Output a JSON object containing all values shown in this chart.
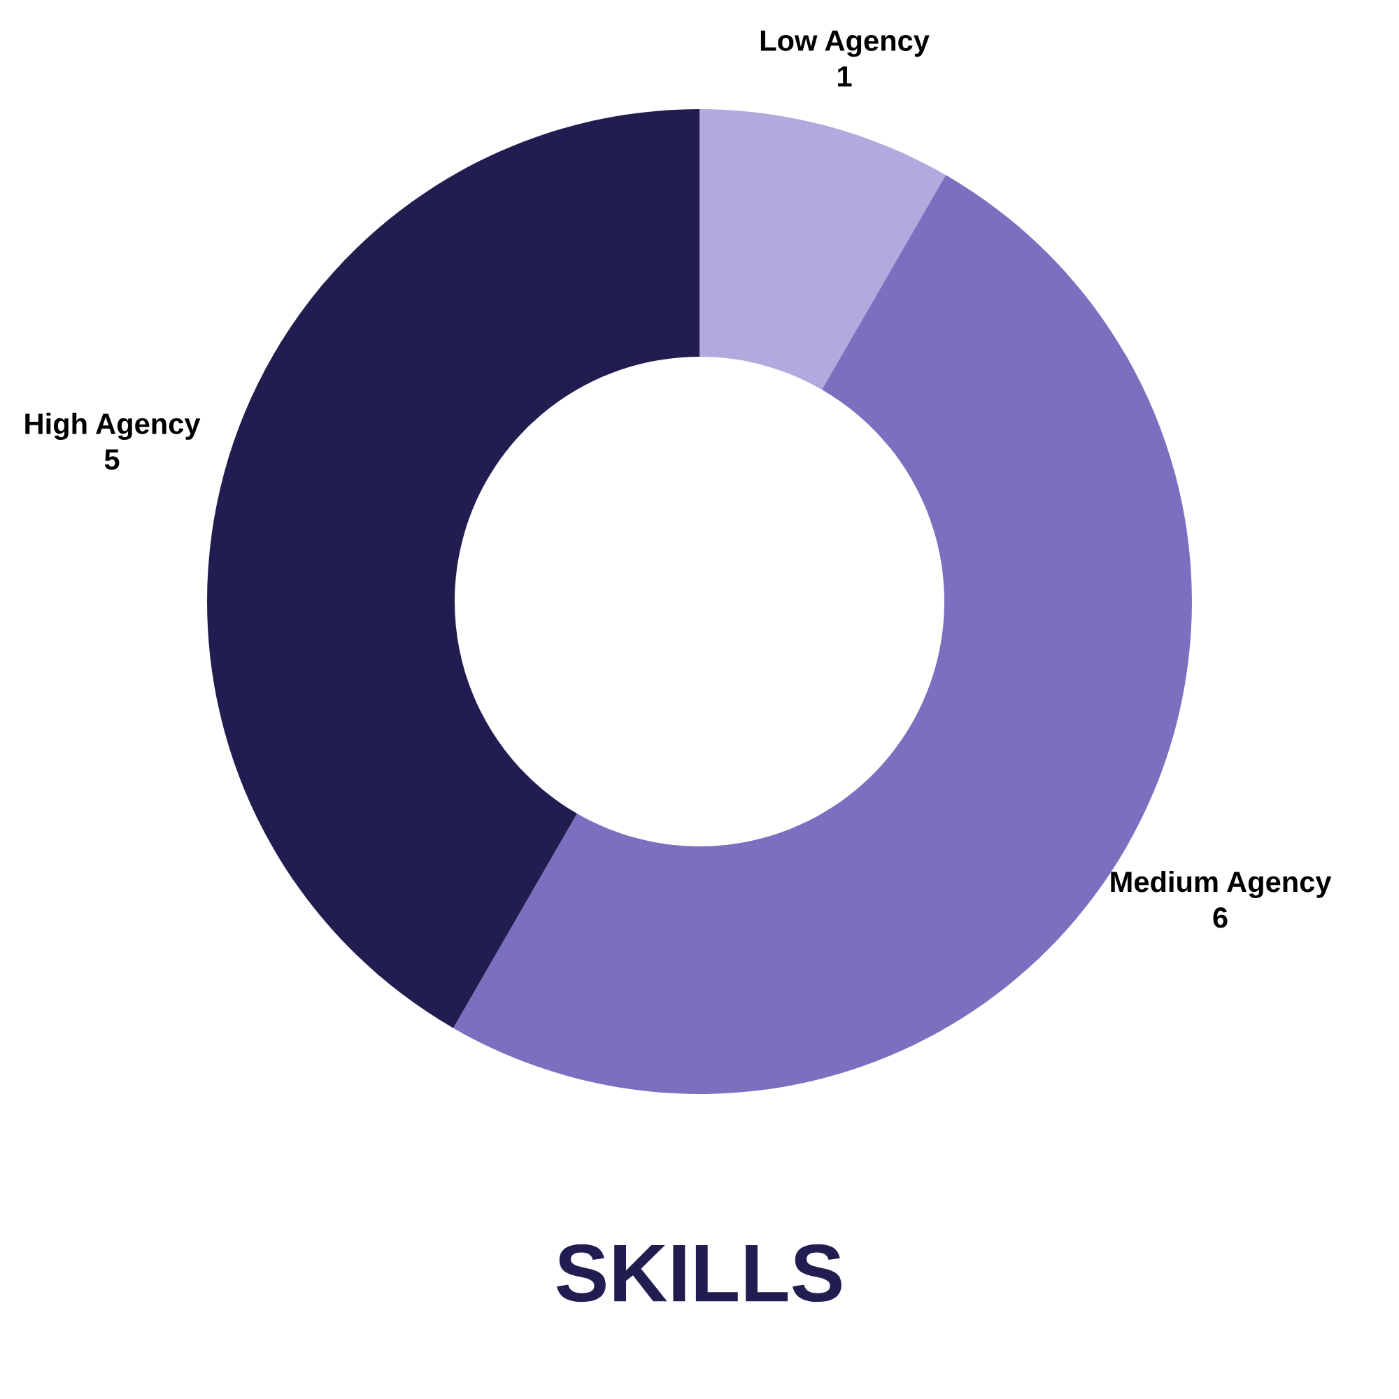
{
  "chart_data": {
    "type": "donut",
    "title": "SKILLS",
    "categories": [
      "Low Agency",
      "Medium Agency",
      "High Agency"
    ],
    "values": [
      1,
      6,
      5
    ],
    "colors": [
      "#b3a9de",
      "#7b6fc0",
      "#221d50"
    ],
    "data_labels": true
  }
}
